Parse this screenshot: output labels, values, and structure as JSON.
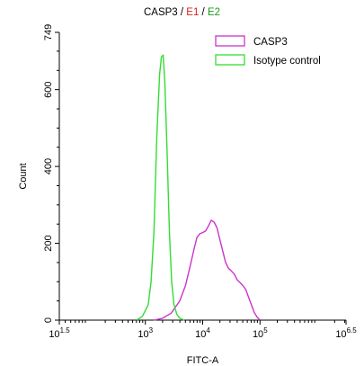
{
  "chart_data": {
    "type": "line",
    "title_parts": [
      "CASP3",
      "/",
      "E1",
      "/",
      "E2"
    ],
    "title_colors": [
      "#000000",
      "#000000",
      "#e0201b",
      "#000000",
      "#1a9a1a"
    ],
    "xlabel": "FITC-A",
    "ylabel": "Count",
    "x_scale": "log10",
    "xlim": [
      1.5,
      6.5
    ],
    "ylim": [
      0,
      749
    ],
    "x_ticks": [
      {
        "exp": 1.5,
        "base": "10",
        "sup": "1.5"
      },
      {
        "exp": 3,
        "base": "10",
        "sup": "3"
      },
      {
        "exp": 4,
        "base": "10",
        "sup": "4"
      },
      {
        "exp": 5,
        "base": "10",
        "sup": "5"
      },
      {
        "exp": 6.5,
        "base": "10",
        "sup": "6.5"
      }
    ],
    "y_ticks": [
      "0",
      "200",
      "400",
      "600",
      "749"
    ],
    "legend_position": "top-right",
    "series": [
      {
        "name": "CASP3",
        "color": "#cc33cc",
        "points": [
          [
            3.15,
            0
          ],
          [
            3.3,
            5
          ],
          [
            3.45,
            18
          ],
          [
            3.6,
            50
          ],
          [
            3.7,
            90
          ],
          [
            3.78,
            140
          ],
          [
            3.85,
            185
          ],
          [
            3.9,
            215
          ],
          [
            3.95,
            225
          ],
          [
            4.0,
            228
          ],
          [
            4.05,
            232
          ],
          [
            4.1,
            245
          ],
          [
            4.15,
            260
          ],
          [
            4.2,
            255
          ],
          [
            4.25,
            240
          ],
          [
            4.3,
            210
          ],
          [
            4.35,
            180
          ],
          [
            4.4,
            150
          ],
          [
            4.45,
            135
          ],
          [
            4.5,
            128
          ],
          [
            4.55,
            120
          ],
          [
            4.6,
            105
          ],
          [
            4.65,
            98
          ],
          [
            4.7,
            90
          ],
          [
            4.75,
            80
          ],
          [
            4.8,
            60
          ],
          [
            4.85,
            40
          ],
          [
            4.9,
            20
          ],
          [
            4.95,
            8
          ],
          [
            5.0,
            0
          ]
        ]
      },
      {
        "name": "Isotype control",
        "color": "#33dd33",
        "points": [
          [
            2.85,
            0
          ],
          [
            2.95,
            10
          ],
          [
            3.05,
            40
          ],
          [
            3.1,
            100
          ],
          [
            3.15,
            230
          ],
          [
            3.2,
            480
          ],
          [
            3.25,
            640
          ],
          [
            3.28,
            685
          ],
          [
            3.31,
            690
          ],
          [
            3.34,
            620
          ],
          [
            3.38,
            440
          ],
          [
            3.42,
            230
          ],
          [
            3.46,
            100
          ],
          [
            3.5,
            40
          ],
          [
            3.55,
            15
          ],
          [
            3.6,
            5
          ],
          [
            3.68,
            0
          ]
        ]
      }
    ]
  }
}
